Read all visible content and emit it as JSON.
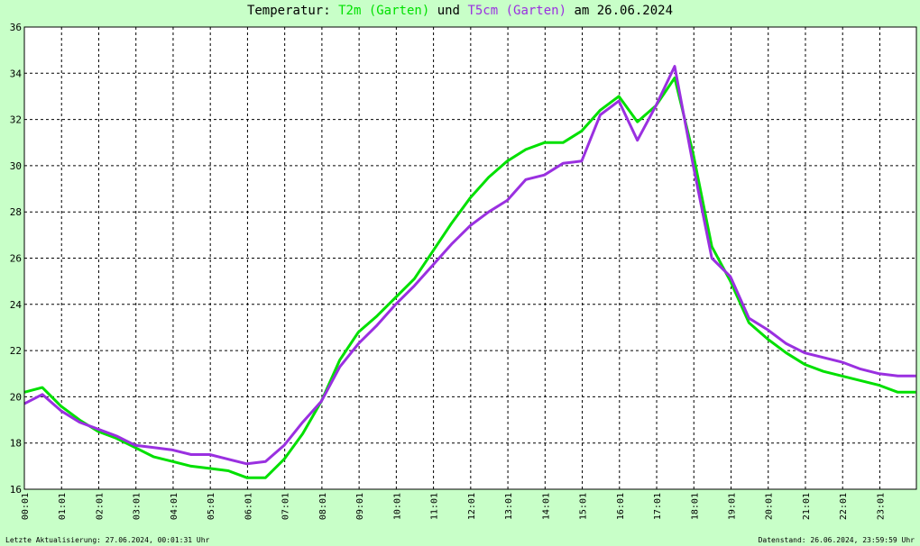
{
  "title": {
    "prefix": "Temperatur:",
    "series1": "T2m (Garten)",
    "conj": "und",
    "series2": "T5cm (Garten)",
    "suffix": "am 26.06.2024"
  },
  "footer": {
    "left": "Letzte Aktualisierung: 27.06.2024, 00:01:31 Uhr",
    "right": "Datenstand: 26.06.2024, 23:59:59 Uhr"
  },
  "colors": {
    "background": "#c8ffc8",
    "plot": "#ffffff",
    "t2m": "#00e000",
    "t5cm": "#9a30e0"
  },
  "chart_data": {
    "type": "line",
    "title": "Temperatur: T2m (Garten) und T5cm (Garten) am 26.06.2024",
    "xlabel": "",
    "ylabel": "",
    "ylim": [
      16,
      36
    ],
    "xlim": [
      "00:01",
      "24:00"
    ],
    "yticks": [
      16,
      18,
      20,
      22,
      24,
      26,
      28,
      30,
      32,
      34,
      36
    ],
    "xticks": [
      "00:01",
      "01:01",
      "02:01",
      "03:01",
      "04:01",
      "05:01",
      "06:01",
      "07:01",
      "08:01",
      "09:01",
      "10:01",
      "11:01",
      "12:01",
      "13:01",
      "14:01",
      "15:01",
      "16:01",
      "17:01",
      "18:01",
      "19:01",
      "20:01",
      "21:01",
      "22:01",
      "23:01"
    ],
    "grid": true,
    "legend": "none",
    "series": [
      {
        "name": "T2m (Garten)",
        "color": "#00e000",
        "x": [
          "00:01",
          "00:30",
          "01:00",
          "01:30",
          "02:00",
          "02:30",
          "03:00",
          "03:30",
          "04:00",
          "04:30",
          "05:00",
          "05:30",
          "06:00",
          "06:30",
          "07:00",
          "07:30",
          "08:00",
          "08:30",
          "09:00",
          "09:30",
          "10:00",
          "10:30",
          "11:00",
          "11:30",
          "12:00",
          "12:30",
          "13:00",
          "13:30",
          "14:00",
          "14:30",
          "15:00",
          "15:30",
          "16:00",
          "16:30",
          "17:00",
          "17:30",
          "18:00",
          "18:30",
          "19:00",
          "19:30",
          "20:00",
          "20:30",
          "21:00",
          "21:30",
          "22:00",
          "22:30",
          "23:00",
          "23:30",
          "23:59"
        ],
        "values": [
          20.2,
          20.4,
          19.6,
          19.0,
          18.5,
          18.2,
          17.8,
          17.4,
          17.2,
          17.0,
          16.9,
          16.8,
          16.5,
          16.5,
          17.3,
          18.4,
          19.8,
          21.6,
          22.8,
          23.5,
          24.3,
          25.1,
          26.3,
          27.5,
          28.6,
          29.5,
          30.2,
          30.7,
          31.0,
          31.0,
          31.5,
          32.4,
          33.0,
          31.9,
          32.6,
          33.8,
          30.5,
          26.5,
          25.0,
          23.2,
          22.5,
          21.9,
          21.4,
          21.1,
          20.9,
          20.7,
          20.5,
          20.2,
          20.2
        ]
      },
      {
        "name": "T5cm (Garten)",
        "color": "#9a30e0",
        "x": [
          "00:01",
          "00:30",
          "01:00",
          "01:30",
          "02:00",
          "02:30",
          "03:00",
          "03:30",
          "04:00",
          "04:30",
          "05:00",
          "05:30",
          "06:00",
          "06:30",
          "07:00",
          "07:30",
          "08:00",
          "08:30",
          "09:00",
          "09:30",
          "10:00",
          "10:30",
          "11:00",
          "11:30",
          "12:00",
          "12:30",
          "13:00",
          "13:30",
          "14:00",
          "14:30",
          "15:00",
          "15:30",
          "16:00",
          "16:30",
          "17:00",
          "17:30",
          "18:00",
          "18:30",
          "19:00",
          "19:30",
          "20:00",
          "20:30",
          "21:00",
          "21:30",
          "22:00",
          "22:30",
          "23:00",
          "23:30",
          "23:59"
        ],
        "values": [
          19.7,
          20.1,
          19.4,
          18.9,
          18.6,
          18.3,
          17.9,
          17.8,
          17.7,
          17.5,
          17.5,
          17.3,
          17.1,
          17.2,
          17.9,
          18.9,
          19.8,
          21.3,
          22.3,
          23.1,
          24.0,
          24.8,
          25.7,
          26.6,
          27.4,
          28.0,
          28.5,
          29.4,
          29.6,
          30.1,
          30.2,
          32.2,
          32.8,
          31.1,
          32.6,
          34.3,
          30.0,
          26.0,
          25.2,
          23.4,
          22.9,
          22.3,
          21.9,
          21.7,
          21.5,
          21.2,
          21.0,
          20.9,
          20.9
        ]
      }
    ]
  }
}
